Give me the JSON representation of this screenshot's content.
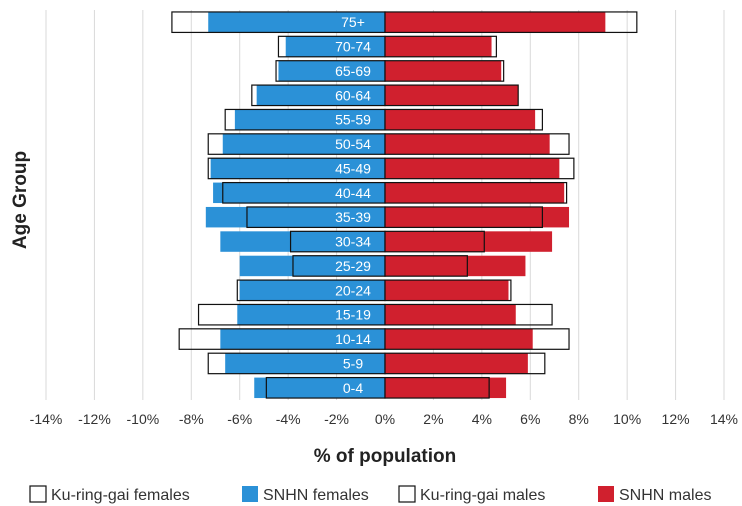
{
  "chart_data": {
    "type": "bar",
    "orientation": "horizontal",
    "subtype": "population-pyramid",
    "categories": [
      "0-4",
      "5-9",
      "10-14",
      "15-19",
      "20-24",
      "25-29",
      "30-34",
      "35-39",
      "40-44",
      "45-49",
      "50-54",
      "55-59",
      "60-64",
      "65-69",
      "70-74",
      "75+"
    ],
    "series": [
      {
        "name": "Ku-ring-gai females",
        "style": "outline",
        "color": "#ffffff",
        "values": [
          -4.9,
          -7.3,
          -8.5,
          -7.7,
          -6.1,
          -3.8,
          -3.9,
          -5.7,
          -6.7,
          -7.3,
          -7.3,
          -6.6,
          -5.5,
          -4.5,
          -4.4,
          -8.8
        ]
      },
      {
        "name": "SNHN females",
        "style": "filled",
        "color": "#2b91d7",
        "values": [
          -5.4,
          -6.6,
          -6.8,
          -6.1,
          -6.0,
          -6.0,
          -6.8,
          -7.4,
          -7.1,
          -7.2,
          -6.7,
          -6.2,
          -5.3,
          -4.4,
          -4.1,
          -7.3
        ]
      },
      {
        "name": "Ku-ring-gai males",
        "style": "outline",
        "color": "#ffffff",
        "values": [
          4.3,
          6.6,
          7.6,
          6.9,
          5.2,
          3.4,
          4.1,
          6.5,
          7.5,
          7.8,
          7.6,
          6.5,
          5.5,
          4.9,
          4.6,
          10.4
        ]
      },
      {
        "name": "SNHN males",
        "style": "filled",
        "color": "#d0202e",
        "values": [
          5.0,
          5.9,
          6.1,
          5.4,
          5.1,
          5.8,
          6.9,
          7.6,
          7.4,
          7.2,
          6.8,
          6.2,
          5.5,
          4.8,
          4.4,
          9.1
        ]
      }
    ],
    "xlabel": "% of population",
    "ylabel": "Age Group",
    "xlim": [
      -14,
      14
    ],
    "xticks": [
      -14,
      -12,
      -10,
      -8,
      -6,
      -4,
      -2,
      0,
      2,
      4,
      6,
      8,
      10,
      12,
      14
    ],
    "xtick_labels": [
      "-14%",
      "-12%",
      "-10%",
      "-8%",
      "-6%",
      "-4%",
      "-2%",
      "0%",
      "2%",
      "4%",
      "6%",
      "8%",
      "10%",
      "12%",
      "14%"
    ],
    "grid": "vertical",
    "legend_position": "bottom"
  }
}
